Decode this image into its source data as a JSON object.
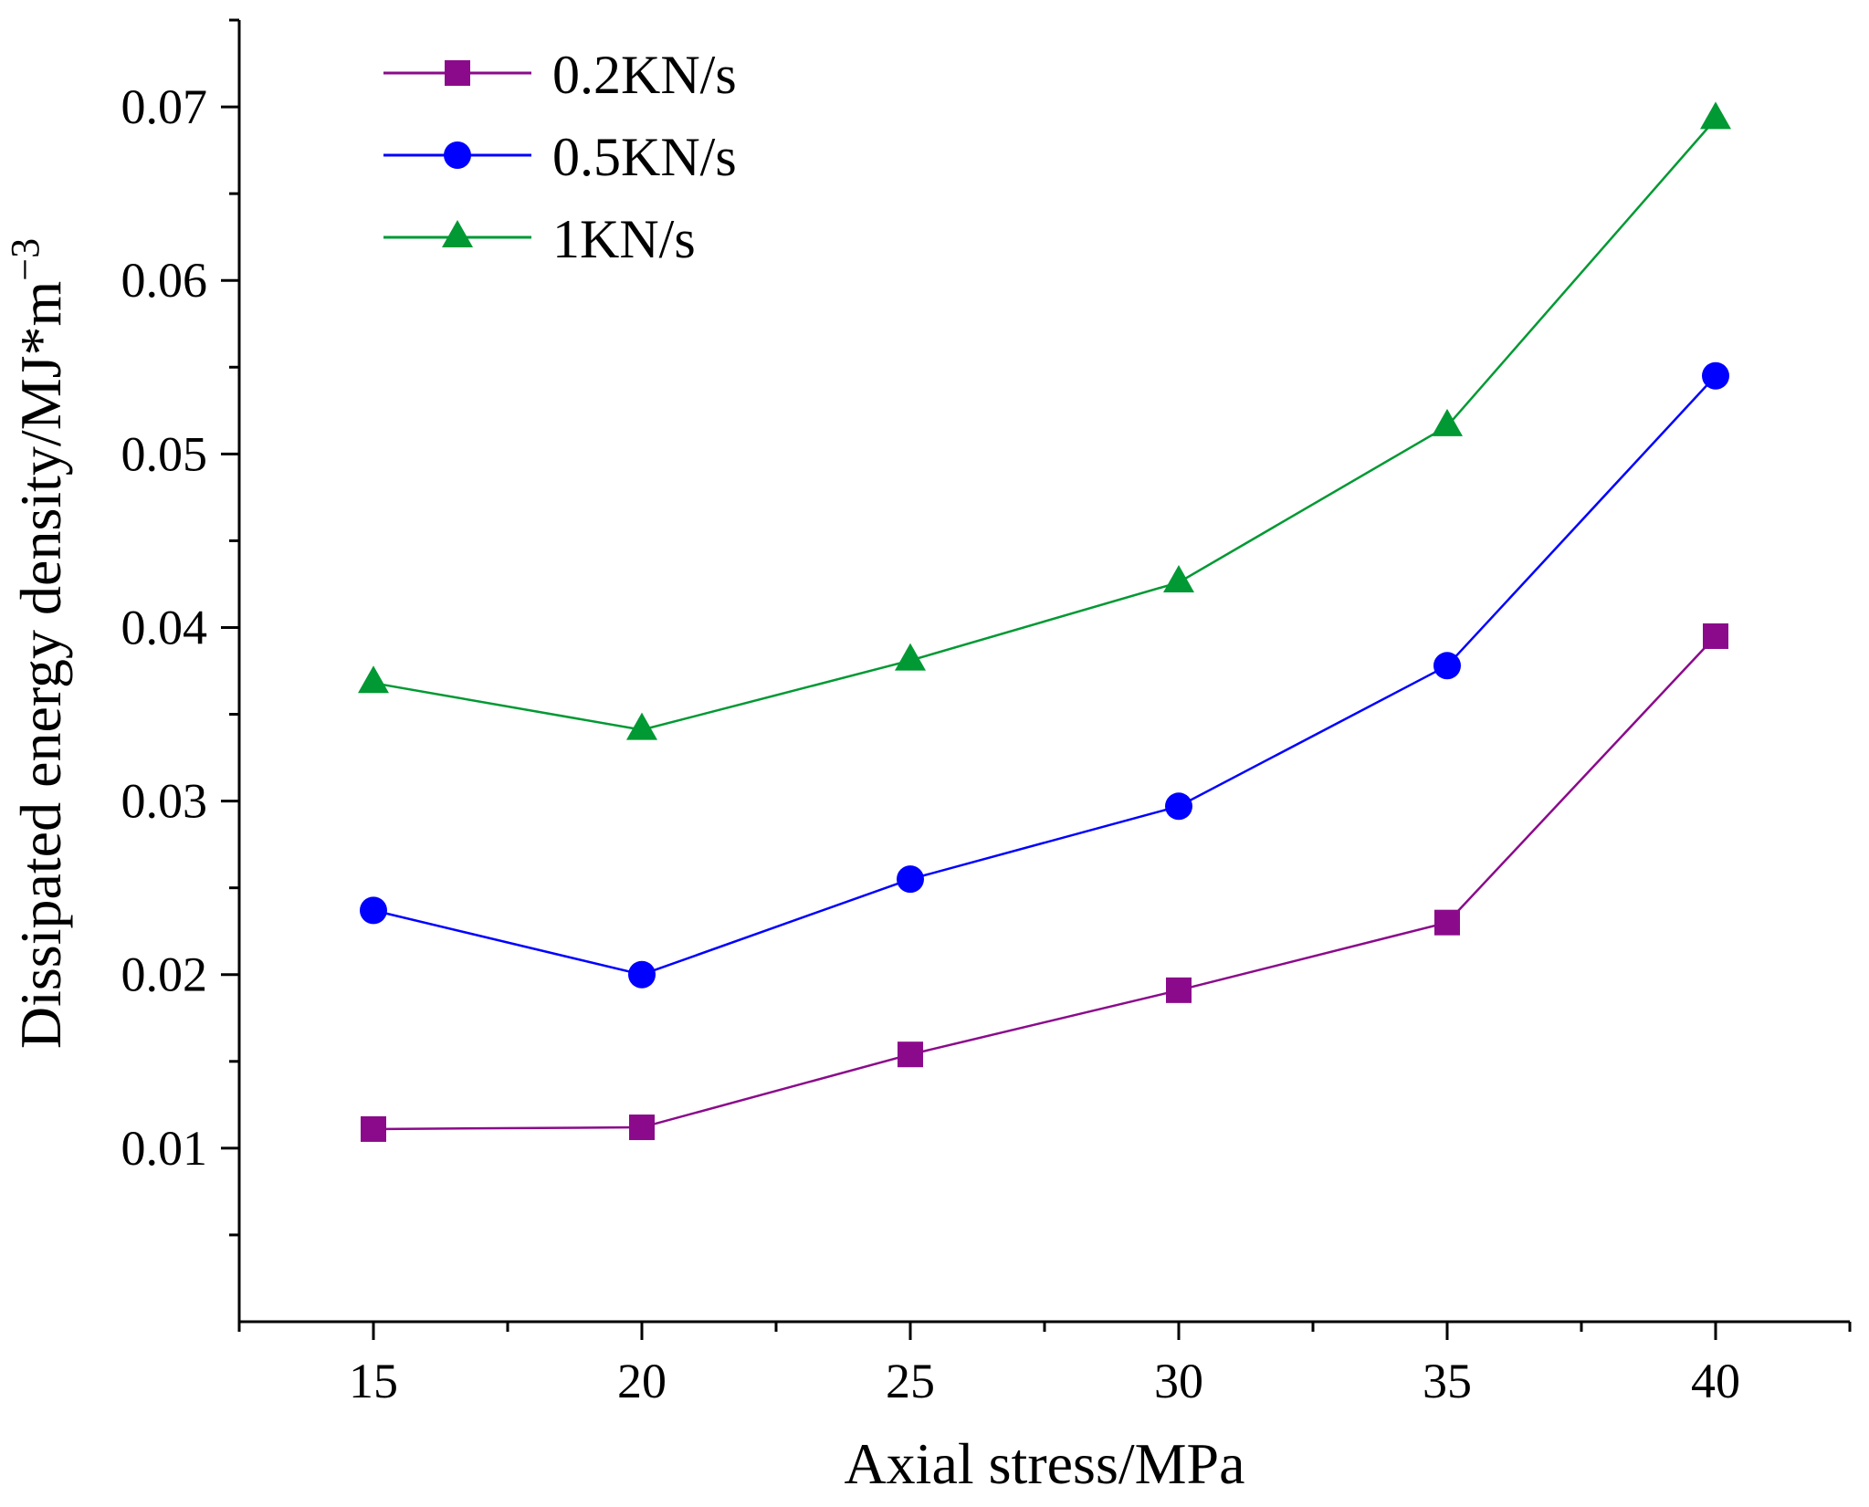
{
  "chart_data": {
    "type": "line",
    "title": "",
    "xlabel": "Axial stress/MPa",
    "ylabel": "Dissipated energy density/MJ*m",
    "ylabel_superscript": "−3",
    "x": [
      15,
      20,
      25,
      30,
      35,
      40
    ],
    "xlim": [
      12.5,
      42.5
    ],
    "ylim": [
      0.0,
      0.075
    ],
    "x_ticks": [
      15,
      20,
      25,
      30,
      35,
      40
    ],
    "x_tick_labels": [
      "15",
      "20",
      "25",
      "30",
      "35",
      "40"
    ],
    "y_ticks": [
      0.01,
      0.02,
      0.03,
      0.04,
      0.05,
      0.06,
      0.07
    ],
    "y_tick_labels": [
      "0.01",
      "0.02",
      "0.03",
      "0.04",
      "0.05",
      "0.06",
      "0.07"
    ],
    "grid": false,
    "legend_position": "top-left",
    "series": [
      {
        "name": "0.2KN/s",
        "marker": "square",
        "color": "#8B0A8B",
        "values": [
          0.0111,
          0.0112,
          0.0154,
          0.0191,
          0.023,
          0.0395
        ]
      },
      {
        "name": "0.5KN/s",
        "marker": "circle",
        "color": "#0000FF",
        "values": [
          0.0237,
          0.02,
          0.0255,
          0.0297,
          0.0378,
          0.0545
        ]
      },
      {
        "name": "1KN/s",
        "marker": "triangle",
        "color": "#009933",
        "values": [
          0.0368,
          0.0341,
          0.0381,
          0.0426,
          0.0516,
          0.0693
        ]
      }
    ]
  }
}
